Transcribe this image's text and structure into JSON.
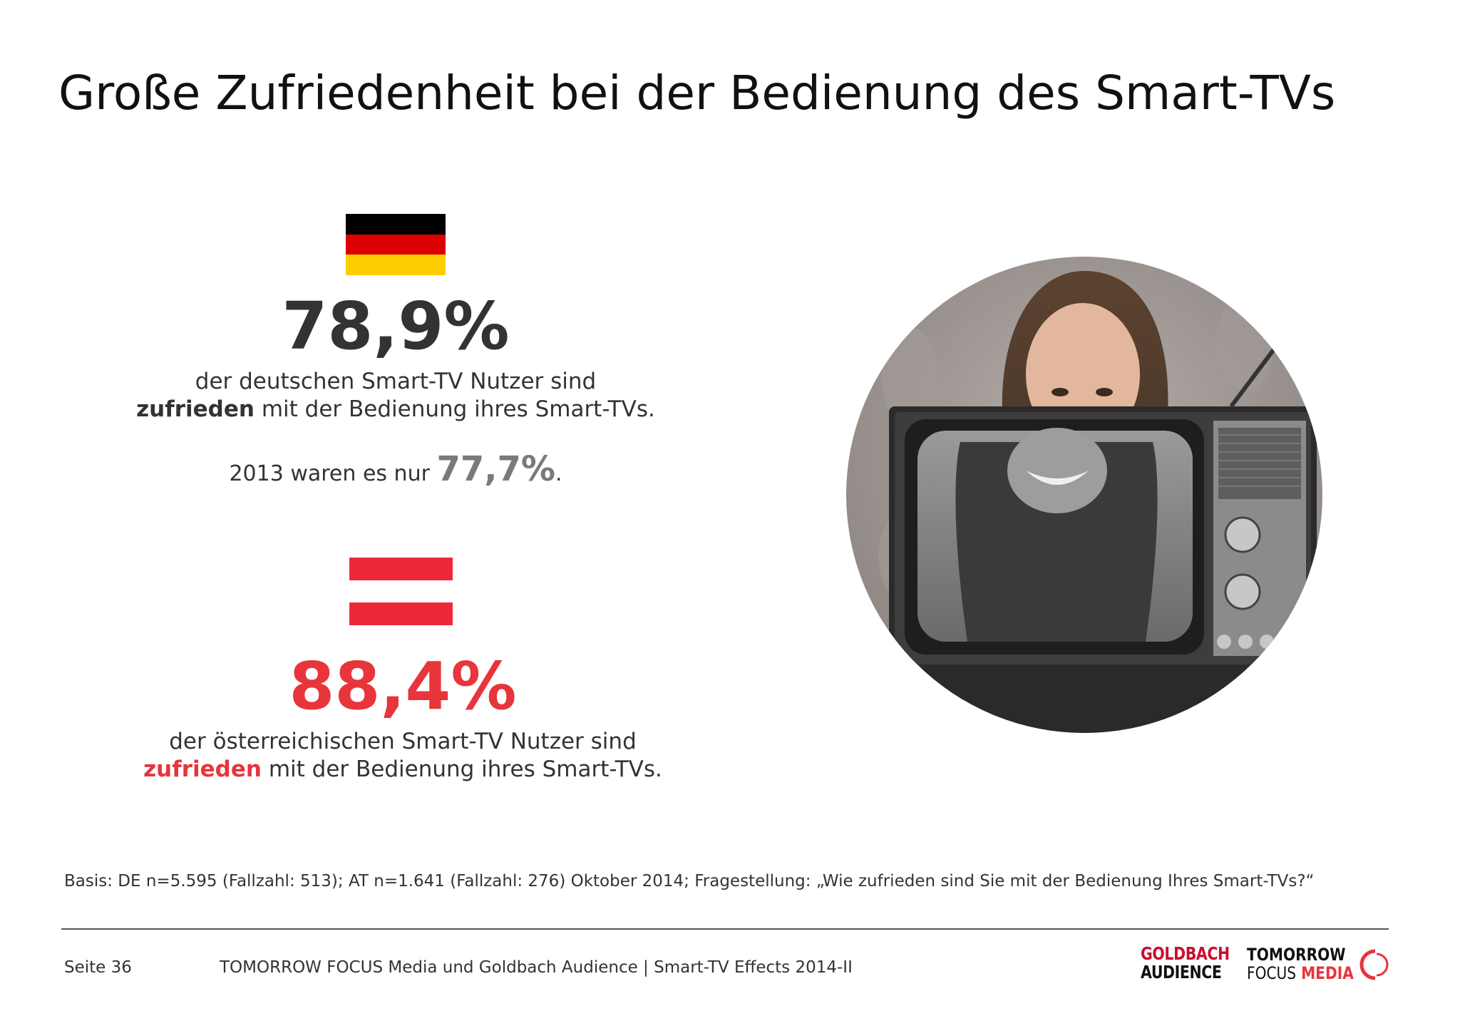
{
  "header": {
    "title": "Große Zufriedenheit bei der Bedienung des Smart-TVs"
  },
  "germany": {
    "flag_colors": [
      "#000000",
      "#dd0000",
      "#ffce00"
    ],
    "value": "78,9%",
    "line1": "der deutschen Smart-TV Nutzer sind",
    "line2_bold": "zufrieden",
    "line2_rest": " mit der Bedienung ihres Smart-TVs.",
    "prev_prefix": "2013 waren es nur ",
    "prev_value": "77,7%",
    "prev_suffix": "."
  },
  "austria": {
    "flag_colors": [
      "#ed2939",
      "#ffffff",
      "#ed2939"
    ],
    "value": "88,4%",
    "line1": "der österreichischen Smart-TV Nutzer sind",
    "line2_bold": "zufrieden",
    "line2_rest": " mit der Bedienung ihres Smart-TVs."
  },
  "footnote": "Basis: DE n=5.595 (Fallzahl: 513); AT n=1.641 (Fallzahl: 276) Oktober 2014; Fragestellung: „Wie zufrieden sind Sie mit der Bedienung Ihres Smart-TVs?“",
  "footer": {
    "page": "Seite 36",
    "text": "TOMORROW FOCUS Media und Goldbach Audience | Smart-TV Effects 2014-II"
  },
  "logos": {
    "goldbach_line1": "GOLDBACH",
    "goldbach_line2": "AUDIENCE",
    "tf_line1": "TOMORROW",
    "tf_line2a": "FOCUS",
    "tf_line2b": "MEDIA"
  },
  "colors": {
    "accent_red": "#e8343b",
    "dark_text": "#333333",
    "gray_value": "#7a7a7a"
  }
}
